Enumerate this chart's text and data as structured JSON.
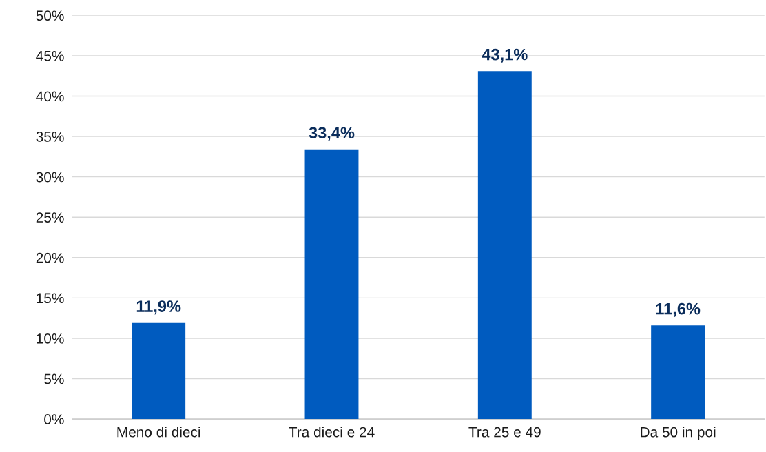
{
  "chart_data": {
    "type": "bar",
    "categories": [
      "Meno di dieci",
      "Tra dieci e 24",
      "Tra 25 e 49",
      "Da 50 in poi"
    ],
    "values": [
      11.9,
      33.4,
      43.1,
      11.6
    ],
    "value_labels": [
      "11,9%",
      "33,4%",
      "43,1%",
      "11,6%"
    ],
    "color": "#005bbf",
    "ylim": [
      0,
      50
    ],
    "yticks": [
      {
        "value": 0,
        "label": "0%"
      },
      {
        "value": 5,
        "label": "5%"
      },
      {
        "value": 10,
        "label": "10%"
      },
      {
        "value": 15,
        "label": "15%"
      },
      {
        "value": 20,
        "label": "20%"
      },
      {
        "value": 25,
        "label": "25%"
      },
      {
        "value": 30,
        "label": "30%"
      },
      {
        "value": 35,
        "label": "35%"
      },
      {
        "value": 40,
        "label": "40%"
      },
      {
        "value": 45,
        "label": "45%"
      },
      {
        "value": 50,
        "label": "50%"
      }
    ],
    "grid": "y",
    "legend": false
  }
}
